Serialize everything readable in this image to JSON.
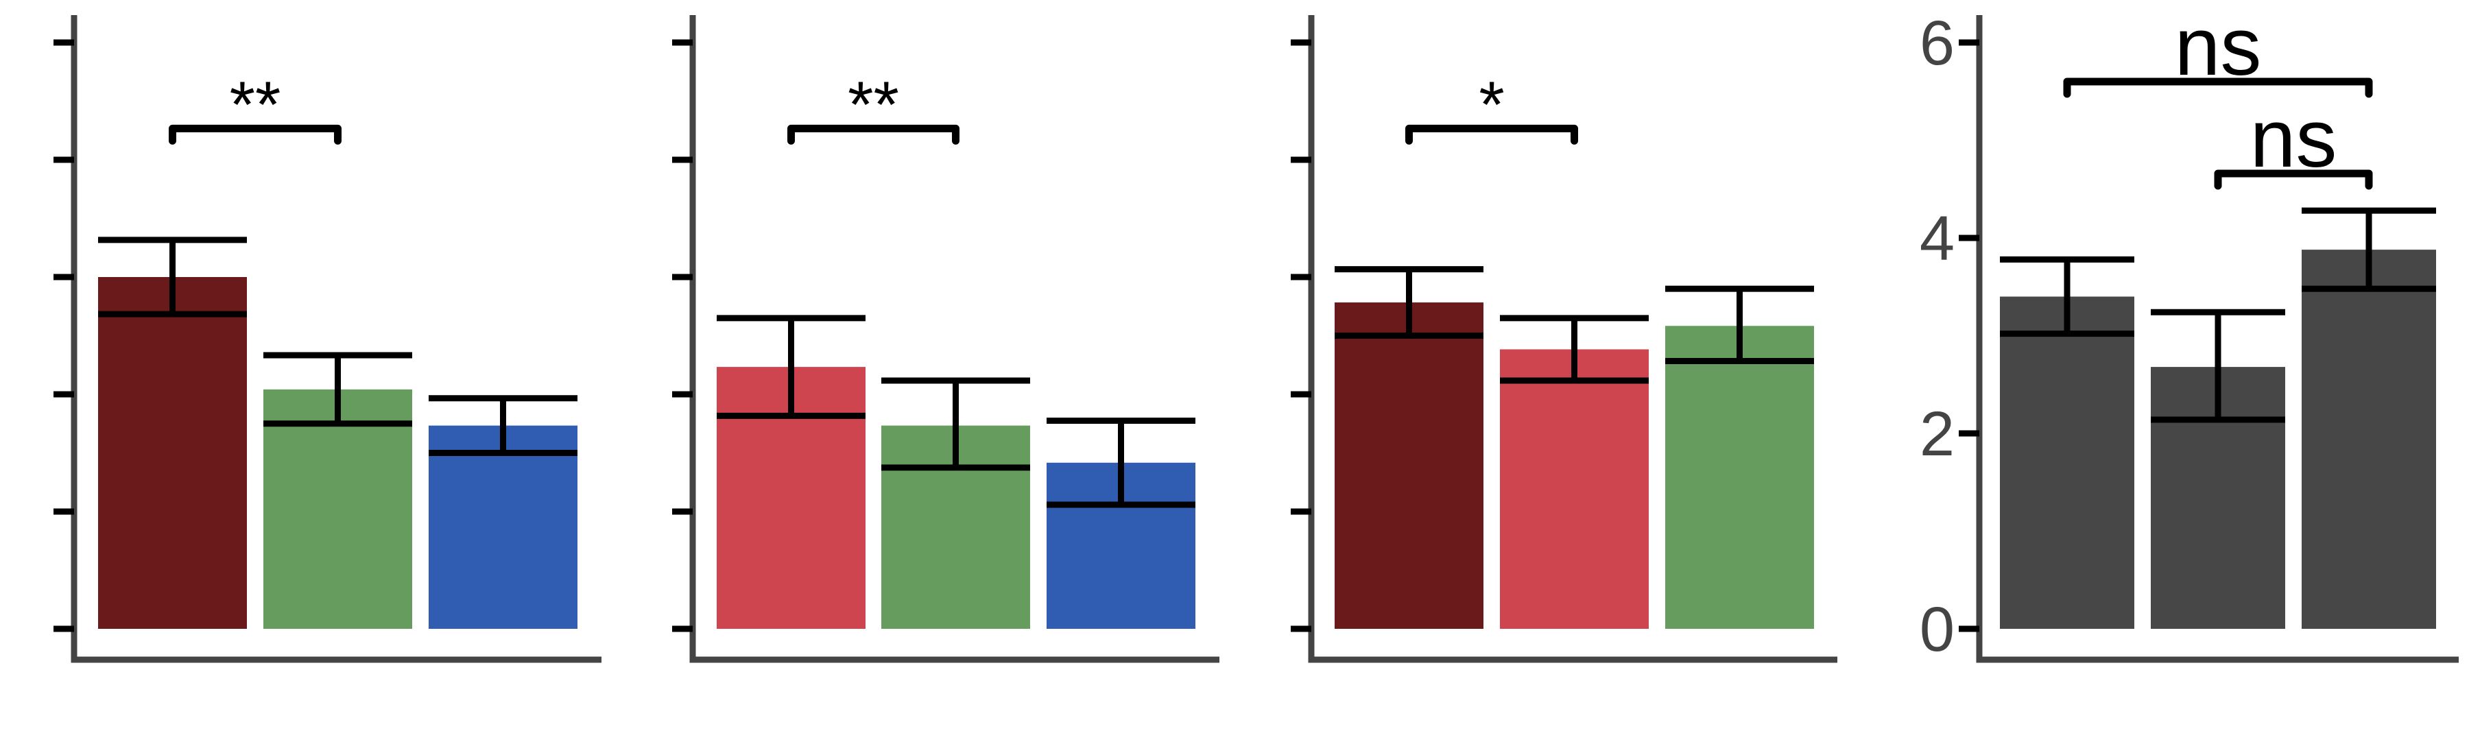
{
  "colors": {
    "axis": "#444444",
    "errorbar": "#000000",
    "dark_red": "#6B1A1C",
    "red": "#CE444F",
    "green": "#669D5F",
    "blue": "#305CB1",
    "gray": "#474747"
  },
  "chart_data": [
    {
      "type": "bar",
      "ylim": [
        0,
        6.2
      ],
      "yticks": [
        0,
        1.2,
        2.4,
        3.6,
        4.8,
        6.0
      ],
      "ytick_labels_shown": false,
      "bars": [
        {
          "value": 3.6,
          "error_low": 3.22,
          "error_high": 3.98,
          "color": "dark_red"
        },
        {
          "value": 2.45,
          "error_low": 2.1,
          "error_high": 2.8,
          "color": "green"
        },
        {
          "value": 2.08,
          "error_low": 1.8,
          "error_high": 2.36,
          "color": "blue"
        }
      ],
      "annotations": [
        {
          "from": 0,
          "to": 1,
          "y": 5.12,
          "text": "**"
        }
      ]
    },
    {
      "type": "bar",
      "ylim": [
        0,
        6.2
      ],
      "yticks": [
        0,
        1.2,
        2.4,
        3.6,
        4.8,
        6.0
      ],
      "ytick_labels_shown": false,
      "bars": [
        {
          "value": 2.68,
          "error_low": 2.18,
          "error_high": 3.18,
          "color": "red"
        },
        {
          "value": 2.08,
          "error_low": 1.65,
          "error_high": 2.54,
          "color": "green"
        },
        {
          "value": 1.7,
          "error_low": 1.27,
          "error_high": 2.13,
          "color": "blue"
        }
      ],
      "annotations": [
        {
          "from": 0,
          "to": 1,
          "y": 5.12,
          "text": "**"
        }
      ]
    },
    {
      "type": "bar",
      "ylim": [
        0,
        6.2
      ],
      "yticks": [
        0,
        1.2,
        2.4,
        3.6,
        4.8,
        6.0
      ],
      "ytick_labels_shown": false,
      "bars": [
        {
          "value": 3.34,
          "error_low": 3.0,
          "error_high": 3.68,
          "color": "dark_red"
        },
        {
          "value": 2.86,
          "error_low": 2.54,
          "error_high": 3.18,
          "color": "red"
        },
        {
          "value": 3.1,
          "error_low": 2.74,
          "error_high": 3.48,
          "color": "green"
        }
      ],
      "annotations": [
        {
          "from": 0,
          "to": 1,
          "y": 5.12,
          "text": "*"
        }
      ]
    },
    {
      "type": "bar",
      "ylim": [
        0,
        6.2
      ],
      "yticks": [
        0,
        2,
        4,
        6
      ],
      "ytick_labels": [
        "0",
        "2",
        "4",
        "6"
      ],
      "ytick_labels_shown": true,
      "bars": [
        {
          "value": 3.4,
          "error_low": 3.02,
          "error_high": 3.78,
          "color": "gray"
        },
        {
          "value": 2.68,
          "error_low": 2.14,
          "error_high": 3.24,
          "color": "gray"
        },
        {
          "value": 3.88,
          "error_low": 3.48,
          "error_high": 4.28,
          "color": "gray"
        }
      ],
      "annotations": [
        {
          "from": 0,
          "to": 2,
          "y": 5.6,
          "text": "ns"
        },
        {
          "from": 1,
          "to": 2,
          "y": 4.66,
          "text": "ns"
        }
      ]
    }
  ]
}
